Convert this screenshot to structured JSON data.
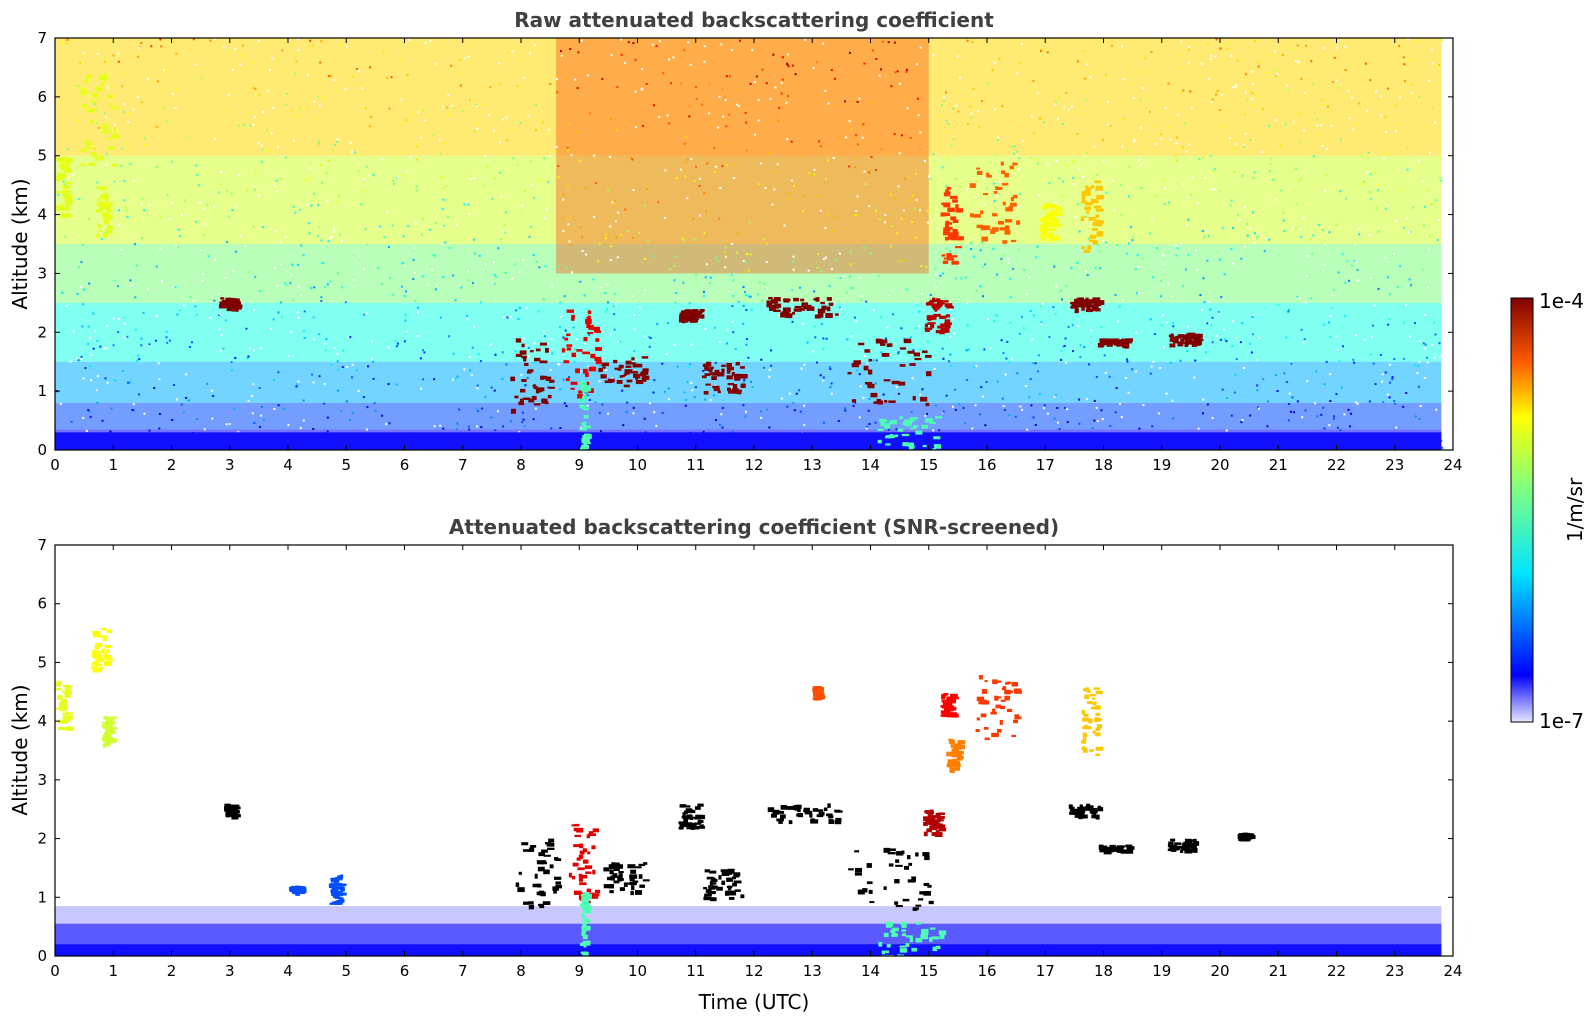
{
  "chart_data": [
    {
      "type": "heatmap",
      "title": "Raw attenuated backscattering coefficient",
      "xlabel": "",
      "ylabel": "Altitude (km)",
      "xlim": [
        0,
        24
      ],
      "ylim": [
        0,
        7
      ],
      "x_ticks": [
        "0",
        "1",
        "2",
        "3",
        "4",
        "5",
        "6",
        "7",
        "8",
        "9",
        "10",
        "11",
        "12",
        "13",
        "14",
        "15",
        "16",
        "17",
        "18",
        "19",
        "20",
        "21",
        "22",
        "23",
        "24"
      ],
      "y_ticks": [
        "0",
        "1",
        "2",
        "3",
        "4",
        "5",
        "6",
        "7"
      ],
      "data_end_time": 23.8,
      "features": [
        {
          "t": [
            0.0,
            0.2
          ],
          "alt": [
            4.0,
            5.0
          ],
          "level": 0.6
        },
        {
          "t": [
            0.4,
            1.0
          ],
          "alt": [
            4.8,
            6.5
          ],
          "level": 0.6
        },
        {
          "t": [
            0.7,
            0.9
          ],
          "alt": [
            3.6,
            4.5
          ],
          "level": 0.6
        },
        {
          "t": [
            2.8,
            3.1
          ],
          "alt": [
            2.4,
            2.6
          ],
          "level": 1.0
        },
        {
          "t": [
            7.8,
            8.5
          ],
          "alt": [
            0.7,
            1.9
          ],
          "level": 1.0
        },
        {
          "t": [
            8.7,
            9.3
          ],
          "alt": [
            0.9,
            2.4
          ],
          "level": 0.9
        },
        {
          "t": [
            9.0,
            9.1
          ],
          "alt": [
            0.0,
            1.2
          ],
          "level": 0.45
        },
        {
          "t": [
            9.3,
            10.1
          ],
          "alt": [
            1.1,
            1.6
          ],
          "level": 1.0
        },
        {
          "t": [
            10.7,
            11.1
          ],
          "alt": [
            2.2,
            2.4
          ],
          "level": 1.0
        },
        {
          "t": [
            11.1,
            11.8
          ],
          "alt": [
            1.0,
            1.5
          ],
          "level": 1.0
        },
        {
          "t": [
            12.2,
            13.4
          ],
          "alt": [
            2.3,
            2.6
          ],
          "level": 1.0
        },
        {
          "t": [
            13.6,
            15.0
          ],
          "alt": [
            0.8,
            1.9
          ],
          "level": 1.0
        },
        {
          "t": [
            14.1,
            15.2
          ],
          "alt": [
            0.0,
            0.6
          ],
          "level": 0.45
        },
        {
          "t": [
            14.9,
            15.3
          ],
          "alt": [
            2.0,
            2.6
          ],
          "level": 0.95
        },
        {
          "t": [
            15.2,
            15.5
          ],
          "alt": [
            3.2,
            4.5
          ],
          "level": 0.82
        },
        {
          "t": [
            15.7,
            16.5
          ],
          "alt": [
            3.5,
            4.9
          ],
          "level": 0.78
        },
        {
          "t": [
            16.9,
            17.2
          ],
          "alt": [
            3.6,
            4.2
          ],
          "level": 0.62
        },
        {
          "t": [
            17.4,
            17.9
          ],
          "alt": [
            2.4,
            2.6
          ],
          "level": 1.0
        },
        {
          "t": [
            17.6,
            17.9
          ],
          "alt": [
            3.4,
            4.6
          ],
          "level": 0.68
        },
        {
          "t": [
            17.9,
            18.4
          ],
          "alt": [
            1.8,
            1.9
          ],
          "level": 1.0
        },
        {
          "t": [
            19.1,
            19.6
          ],
          "alt": [
            1.8,
            2.0
          ],
          "level": 1.0
        }
      ]
    },
    {
      "type": "heatmap",
      "title": "Attenuated backscattering coefficient (SNR-screened)",
      "xlabel": "Time (UTC)",
      "ylabel": "Altitude (km)",
      "xlim": [
        0,
        24
      ],
      "ylim": [
        0,
        7
      ],
      "x_ticks": [
        "0",
        "1",
        "2",
        "3",
        "4",
        "5",
        "6",
        "7",
        "8",
        "9",
        "10",
        "11",
        "12",
        "13",
        "14",
        "15",
        "16",
        "17",
        "18",
        "19",
        "20",
        "21",
        "22",
        "23",
        "24"
      ],
      "y_ticks": [
        "0",
        "1",
        "2",
        "3",
        "4",
        "5",
        "6",
        "7"
      ],
      "data_end_time": 23.8,
      "features": [
        {
          "t": [
            0.0,
            0.2
          ],
          "alt": [
            3.9,
            4.7
          ],
          "level": 0.6
        },
        {
          "t": [
            0.6,
            0.9
          ],
          "alt": [
            4.9,
            5.6
          ],
          "level": 0.62
        },
        {
          "t": [
            0.8,
            0.95
          ],
          "alt": [
            3.6,
            4.1
          ],
          "level": 0.58
        },
        {
          "t": [
            2.9,
            3.1
          ],
          "alt": [
            2.4,
            2.6
          ],
          "level": "black"
        },
        {
          "t": [
            4.0,
            4.2
          ],
          "alt": [
            1.1,
            1.2
          ],
          "level": 0.2
        },
        {
          "t": [
            4.7,
            4.9
          ],
          "alt": [
            0.9,
            1.4
          ],
          "level": 0.2
        },
        {
          "t": [
            7.9,
            8.6
          ],
          "alt": [
            0.8,
            2.0
          ],
          "level": "black"
        },
        {
          "t": [
            8.8,
            9.3
          ],
          "alt": [
            0.9,
            2.3
          ],
          "level": 0.9
        },
        {
          "t": [
            9.0,
            9.1
          ],
          "alt": [
            0.0,
            1.1
          ],
          "level": 0.45
        },
        {
          "t": [
            9.4,
            10.1
          ],
          "alt": [
            1.1,
            1.6
          ],
          "level": "black"
        },
        {
          "t": [
            10.7,
            11.1
          ],
          "alt": [
            2.2,
            2.6
          ],
          "level": "black"
        },
        {
          "t": [
            11.1,
            11.8
          ],
          "alt": [
            1.0,
            1.5
          ],
          "level": "black"
        },
        {
          "t": [
            12.2,
            13.4
          ],
          "alt": [
            2.3,
            2.6
          ],
          "level": "black"
        },
        {
          "t": [
            13.0,
            13.1
          ],
          "alt": [
            4.4,
            4.6
          ],
          "level": 0.8
        },
        {
          "t": [
            13.6,
            15.0
          ],
          "alt": [
            0.8,
            1.9
          ],
          "level": "black"
        },
        {
          "t": [
            14.1,
            15.2
          ],
          "alt": [
            0.0,
            0.6
          ],
          "level": 0.45
        },
        {
          "t": [
            14.9,
            15.2
          ],
          "alt": [
            2.1,
            2.5
          ],
          "level": 0.95
        },
        {
          "t": [
            15.2,
            15.4
          ],
          "alt": [
            4.1,
            4.5
          ],
          "level": 0.88
        },
        {
          "t": [
            15.3,
            15.5
          ],
          "alt": [
            3.2,
            3.7
          ],
          "level": 0.75
        },
        {
          "t": [
            15.8,
            16.5
          ],
          "alt": [
            3.7,
            4.8
          ],
          "level": 0.82
        },
        {
          "t": [
            17.4,
            17.9
          ],
          "alt": [
            2.4,
            2.6
          ],
          "level": "black"
        },
        {
          "t": [
            17.6,
            17.9
          ],
          "alt": [
            3.4,
            4.6
          ],
          "level": 0.68
        },
        {
          "t": [
            17.9,
            18.4
          ],
          "alt": [
            1.8,
            1.9
          ],
          "level": "black"
        },
        {
          "t": [
            19.1,
            19.6
          ],
          "alt": [
            1.8,
            2.0
          ],
          "level": "black"
        },
        {
          "t": [
            20.3,
            20.5
          ],
          "alt": [
            2.0,
            2.1
          ],
          "level": "black"
        }
      ]
    }
  ],
  "colorbar": {
    "label": "1/m/sr",
    "max_label": "1e-4",
    "min_label": "1e-7",
    "scale": "log"
  }
}
